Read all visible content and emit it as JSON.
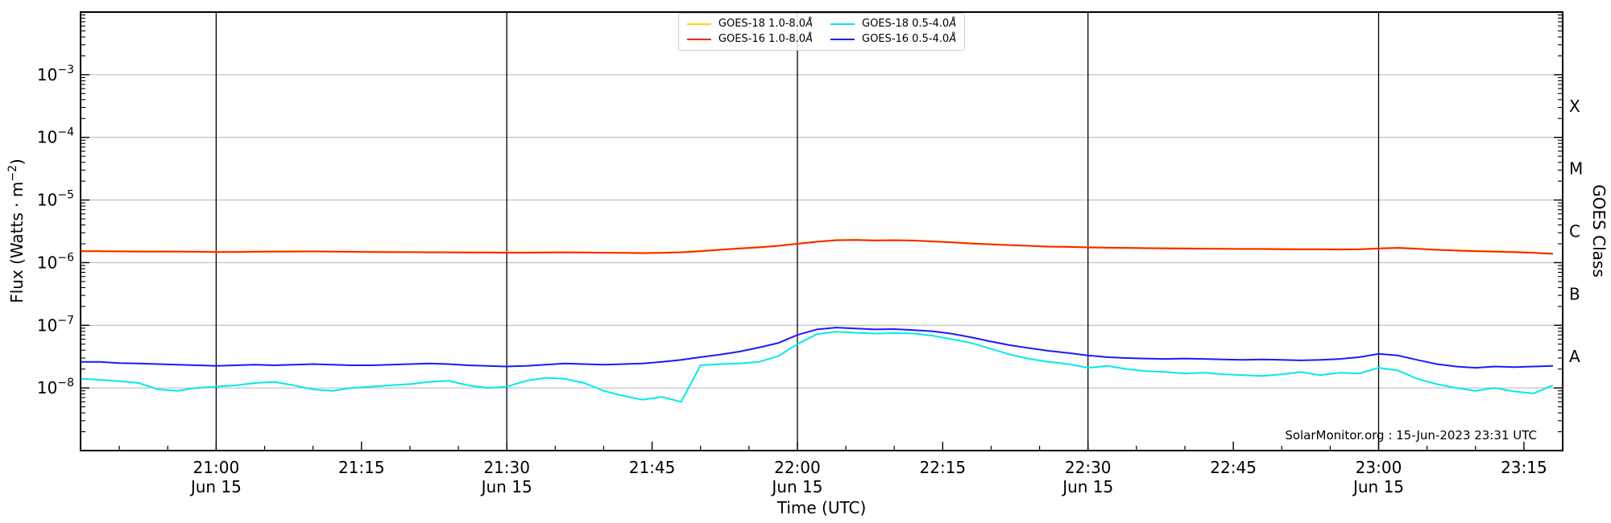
{
  "figure": {
    "xlabel": "Time (UTC)",
    "ylabel": {
      "pre": "Flux (Watts · m",
      "sup": "−2",
      "post": ")"
    },
    "right_axis_label": "GOES Class",
    "source_note": "SolarMonitor.org : 15-Jun-2023 23:31 UTC",
    "goes_class_letters": [
      {
        "label": "X",
        "band_exp_low": -4,
        "band_exp_high": -3
      },
      {
        "label": "M",
        "band_exp_low": -5,
        "band_exp_high": -4
      },
      {
        "label": "C",
        "band_exp_low": -6,
        "band_exp_high": -5
      },
      {
        "label": "B",
        "band_exp_low": -7,
        "band_exp_high": -6
      },
      {
        "label": "A",
        "band_exp_low": -8,
        "band_exp_high": -7
      }
    ]
  },
  "colors": {
    "background": "#ffffff",
    "spine": "#000000",
    "grid": "#b4b4b4",
    "vline": "#000000",
    "tick": "#000000"
  },
  "chart_data": {
    "type": "line",
    "title": "",
    "xlabel": "Time (UTC)",
    "ylabel": "Flux (Watts · m^-2)",
    "y_scale": "log",
    "grid": "horizontal-decades",
    "legend_position": "top-center",
    "legend_columns": 2,
    "x_axis": {
      "start": "20:46",
      "end": "23:19",
      "minor_tick_step_min": 5,
      "major_ticks": [
        {
          "time": "21:00",
          "date": "Jun 15",
          "vline": true
        },
        {
          "time": "21:15",
          "date": null,
          "vline": false
        },
        {
          "time": "21:30",
          "date": "Jun 15",
          "vline": true
        },
        {
          "time": "21:45",
          "date": null,
          "vline": false
        },
        {
          "time": "22:00",
          "date": "Jun 15",
          "vline": true
        },
        {
          "time": "22:15",
          "date": null,
          "vline": false
        },
        {
          "time": "22:30",
          "date": "Jun 15",
          "vline": true
        },
        {
          "time": "22:45",
          "date": null,
          "vline": false
        },
        {
          "time": "23:00",
          "date": "Jun 15",
          "vline": true
        },
        {
          "time": "23:15",
          "date": null,
          "vline": false
        }
      ]
    },
    "y_axis": {
      "exp_min": -9,
      "exp_max": -2,
      "ticks": [
        {
          "base": "10",
          "sup": "−3",
          "exp": -3
        },
        {
          "base": "10",
          "sup": "−4",
          "exp": -4
        },
        {
          "base": "10",
          "sup": "−5",
          "exp": -5
        },
        {
          "base": "10",
          "sup": "−6",
          "exp": -6
        },
        {
          "base": "10",
          "sup": "−7",
          "exp": -7
        },
        {
          "base": "10",
          "sup": "−8",
          "exp": -8
        }
      ]
    },
    "series": [
      {
        "name": "GOES-18 1.0-8.0Å",
        "color": "#ffd700",
        "scale": 1e-06,
        "start": "20:46",
        "step_min": 2,
        "values": [
          1.55,
          1.54,
          1.53,
          1.52,
          1.52,
          1.51,
          1.5,
          1.5,
          1.5,
          1.51,
          1.52,
          1.52,
          1.52,
          1.51,
          1.5,
          1.5,
          1.49,
          1.48,
          1.48,
          1.47,
          1.47,
          1.46,
          1.46,
          1.46,
          1.47,
          1.47,
          1.46,
          1.45,
          1.45,
          1.44,
          1.45,
          1.48,
          1.54,
          1.62,
          1.7,
          1.77,
          1.87,
          2.02,
          2.17,
          2.3,
          2.32,
          2.28,
          2.3,
          2.27,
          2.2,
          2.12,
          2.04,
          1.97,
          1.92,
          1.87,
          1.82,
          1.8,
          1.77,
          1.75,
          1.74,
          1.72,
          1.71,
          1.7,
          1.69,
          1.68,
          1.67,
          1.67,
          1.66,
          1.65,
          1.65,
          1.64,
          1.65,
          1.7,
          1.74,
          1.68,
          1.62,
          1.58,
          1.54,
          1.52,
          1.49,
          1.45,
          1.4
        ]
      },
      {
        "name": "GOES-16 1.0-8.0Å",
        "color": "#ff2200",
        "scale": 1e-06,
        "start": "20:46",
        "step_min": 2,
        "values": [
          1.52,
          1.52,
          1.51,
          1.5,
          1.5,
          1.5,
          1.49,
          1.48,
          1.48,
          1.49,
          1.5,
          1.5,
          1.51,
          1.5,
          1.49,
          1.48,
          1.47,
          1.47,
          1.46,
          1.46,
          1.45,
          1.45,
          1.44,
          1.44,
          1.45,
          1.46,
          1.45,
          1.44,
          1.43,
          1.42,
          1.43,
          1.46,
          1.52,
          1.6,
          1.68,
          1.75,
          1.85,
          2.0,
          2.15,
          2.28,
          2.3,
          2.26,
          2.28,
          2.25,
          2.18,
          2.1,
          2.02,
          1.95,
          1.9,
          1.85,
          1.8,
          1.78,
          1.75,
          1.73,
          1.72,
          1.7,
          1.69,
          1.68,
          1.67,
          1.66,
          1.65,
          1.65,
          1.64,
          1.63,
          1.63,
          1.62,
          1.63,
          1.68,
          1.72,
          1.66,
          1.6,
          1.56,
          1.52,
          1.5,
          1.47,
          1.43,
          1.38
        ]
      },
      {
        "name": "GOES-18 0.5-4.0Å",
        "color": "#00eaea",
        "scale": 1e-08,
        "start": "20:46",
        "step_min": 2,
        "values": [
          1.4,
          1.35,
          1.28,
          1.2,
          0.95,
          0.9,
          1.0,
          1.05,
          1.1,
          1.2,
          1.25,
          1.1,
          0.95,
          0.9,
          1.0,
          1.05,
          1.1,
          1.15,
          1.25,
          1.3,
          1.1,
          1.0,
          1.05,
          1.3,
          1.45,
          1.4,
          1.2,
          0.9,
          0.75,
          0.65,
          0.72,
          0.6,
          2.3,
          2.4,
          2.45,
          2.6,
          3.2,
          5.0,
          7.2,
          7.9,
          7.6,
          7.4,
          7.5,
          7.4,
          6.8,
          6.0,
          5.2,
          4.2,
          3.4,
          2.9,
          2.6,
          2.4,
          2.1,
          2.25,
          2.0,
          1.85,
          1.8,
          1.7,
          1.75,
          1.65,
          1.6,
          1.55,
          1.65,
          1.8,
          1.6,
          1.75,
          1.7,
          2.1,
          1.9,
          1.4,
          1.15,
          1.0,
          0.9,
          1.0,
          0.88,
          0.82,
          1.1
        ]
      },
      {
        "name": "GOES-16 0.5-4.0Å",
        "color": "#1a1aff",
        "scale": 1e-08,
        "start": "20:46",
        "step_min": 2,
        "values": [
          2.6,
          2.6,
          2.5,
          2.45,
          2.4,
          2.35,
          2.3,
          2.25,
          2.3,
          2.35,
          2.3,
          2.35,
          2.4,
          2.35,
          2.3,
          2.3,
          2.35,
          2.4,
          2.45,
          2.4,
          2.3,
          2.25,
          2.2,
          2.25,
          2.35,
          2.45,
          2.4,
          2.35,
          2.4,
          2.45,
          2.6,
          2.8,
          3.1,
          3.4,
          3.8,
          4.4,
          5.2,
          7.0,
          8.6,
          9.2,
          8.9,
          8.6,
          8.7,
          8.4,
          8.0,
          7.3,
          6.4,
          5.5,
          4.8,
          4.3,
          3.9,
          3.6,
          3.3,
          3.1,
          3.0,
          2.95,
          2.9,
          2.95,
          2.9,
          2.85,
          2.8,
          2.85,
          2.8,
          2.75,
          2.8,
          2.9,
          3.1,
          3.5,
          3.3,
          2.8,
          2.4,
          2.2,
          2.1,
          2.2,
          2.15,
          2.2,
          2.25
        ]
      }
    ]
  }
}
